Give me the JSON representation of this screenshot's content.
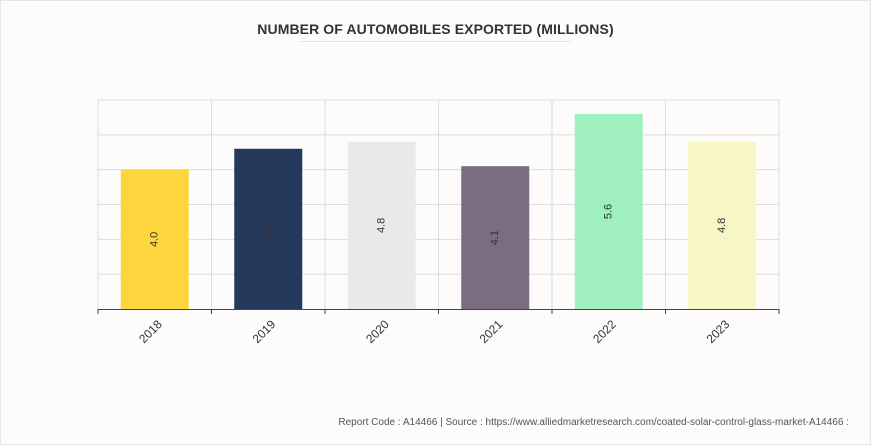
{
  "chart_data": {
    "type": "bar",
    "title": "NUMBER OF AUTOMOBILES EXPORTED (MILLIONS)",
    "categories": [
      "2018",
      "2019",
      "2020",
      "2021",
      "2022",
      "2023"
    ],
    "values": [
      4.0,
      4.6,
      4.8,
      4.1,
      5.6,
      4.8
    ],
    "value_labels": [
      "4.0",
      "4.6",
      "4.8",
      "4.1",
      "5.6",
      "4.8"
    ],
    "colors": [
      "#fdd53c",
      "#25395c",
      "#e9e9e9",
      "#7a6d82",
      "#9fefbf",
      "#f7f7c6"
    ],
    "ylim": [
      0,
      6
    ],
    "grid": true,
    "legend": "none"
  },
  "footer": {
    "text": "Report Code : A14466  |  Source : https://www.alliedmarketresearch.com/coated-solar-control-glass-market-A14466 :"
  }
}
